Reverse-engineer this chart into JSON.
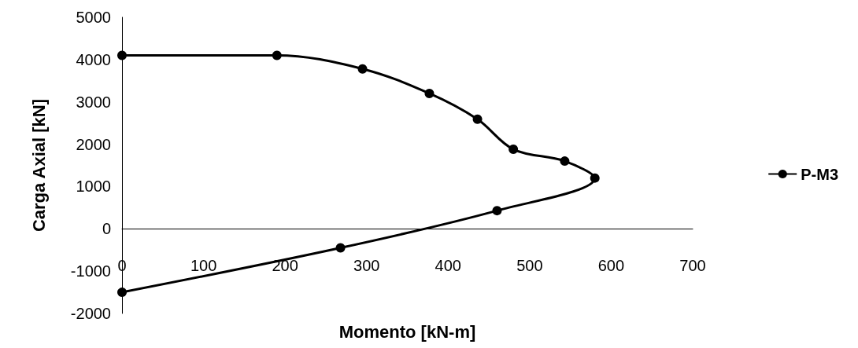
{
  "chart_data": {
    "type": "line",
    "xlabel": "Momento [kN-m]",
    "ylabel": "Carga Axial [kN]",
    "xlim": [
      0,
      700
    ],
    "xticks": [
      0,
      100,
      200,
      300,
      400,
      500,
      600,
      700
    ],
    "ylim": [
      -2000,
      5000
    ],
    "yticks": [
      -2000,
      -1000,
      0,
      1000,
      2000,
      3000,
      4000,
      5000
    ],
    "grid": false,
    "legend": "right",
    "marker": "circle",
    "line_style": "solid",
    "series": [
      {
        "name": "P-M3",
        "color": "#000000",
        "x": [
          0,
          190,
          295,
          377,
          436,
          480,
          543,
          580,
          460,
          268,
          0
        ],
        "values": [
          4100,
          4100,
          3780,
          3200,
          2590,
          1880,
          1600,
          1200,
          430,
          -450,
          -1500
        ]
      }
    ]
  }
}
